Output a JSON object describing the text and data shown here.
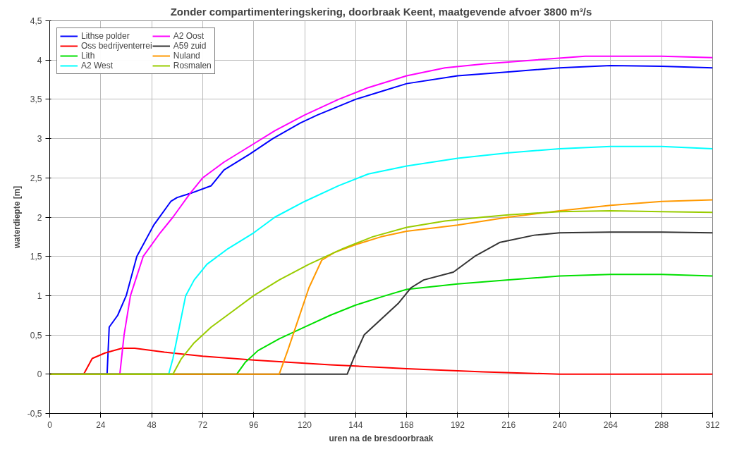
{
  "chart_data": {
    "type": "line",
    "title": "Zonder compartimenteringskering, doorbraak Keent, maatgevende afvoer 3800 m³/s",
    "xlabel": "uren na de bresdoorbraak",
    "ylabel": "waterdiepte [m]",
    "xlim": [
      0,
      312
    ],
    "xticks": [
      0,
      24,
      48,
      72,
      96,
      120,
      144,
      168,
      192,
      216,
      240,
      264,
      288,
      312
    ],
    "ylim": [
      -0.5,
      4.5
    ],
    "yticks": [
      {
        "value": -0.5,
        "label": "-0,5"
      },
      0,
      {
        "value": 0.5,
        "label": "0,5"
      },
      1,
      {
        "value": 1.5,
        "label": "1,5"
      },
      2,
      {
        "value": 2.5,
        "label": "2,5"
      },
      3,
      {
        "value": 3.5,
        "label": "3,5"
      },
      4,
      {
        "value": 4.5,
        "label": "4,5"
      }
    ],
    "grid": true,
    "legend": "top left",
    "line_style": "solid",
    "marker": "none",
    "series": [
      {
        "name": "Lithse polder",
        "color": "#0000ff",
        "x": [
          0,
          27,
          28,
          32,
          36,
          41,
          49,
          57,
          60,
          66,
          76,
          82,
          94,
          105,
          118,
          126,
          144,
          156,
          168,
          192,
          216,
          240,
          264,
          288,
          312
        ],
        "values": [
          0,
          0,
          0.6,
          0.75,
          1.0,
          1.5,
          1.9,
          2.2,
          2.25,
          2.3,
          2.4,
          2.6,
          2.8,
          3.0,
          3.2,
          3.3,
          3.5,
          3.6,
          3.7,
          3.8,
          3.85,
          3.9,
          3.93,
          3.92,
          3.9
        ]
      },
      {
        "name": "Oss bedrijventerrei",
        "color": "#ff0000",
        "x": [
          0,
          16,
          20,
          26,
          34,
          40,
          54,
          72,
          96,
          132,
          168,
          204,
          228,
          240,
          312
        ],
        "values": [
          0,
          0,
          0.2,
          0.27,
          0.33,
          0.33,
          0.28,
          0.23,
          0.18,
          0.12,
          0.07,
          0.03,
          0.01,
          0,
          0
        ]
      },
      {
        "name": "Lith",
        "color": "#00e000",
        "x": [
          0,
          88,
          92,
          98,
          108,
          120,
          132,
          144,
          158,
          168,
          192,
          216,
          240,
          264,
          288,
          312
        ],
        "values": [
          0,
          0,
          0.15,
          0.3,
          0.45,
          0.6,
          0.75,
          0.88,
          1.0,
          1.08,
          1.15,
          1.2,
          1.25,
          1.27,
          1.27,
          1.25
        ]
      },
      {
        "name": "A2 West",
        "color": "#00ffff",
        "x": [
          0,
          56,
          58,
          61,
          64,
          68,
          74,
          84,
          96,
          106,
          120,
          136,
          150,
          168,
          192,
          216,
          240,
          264,
          288,
          312
        ],
        "values": [
          0,
          0,
          0.2,
          0.6,
          1.0,
          1.2,
          1.4,
          1.6,
          1.8,
          2.0,
          2.2,
          2.4,
          2.55,
          2.65,
          2.75,
          2.82,
          2.87,
          2.9,
          2.9,
          2.87
        ]
      },
      {
        "name": "A2 Oost",
        "color": "#ff00ff",
        "x": [
          0,
          33,
          35,
          38,
          44,
          52,
          58,
          66,
          72,
          82,
          94,
          106,
          120,
          136,
          150,
          168,
          186,
          204,
          228,
          252,
          288,
          312
        ],
        "values": [
          0,
          0,
          0.5,
          1.0,
          1.5,
          1.8,
          2.0,
          2.3,
          2.5,
          2.7,
          2.9,
          3.1,
          3.3,
          3.5,
          3.65,
          3.8,
          3.9,
          3.95,
          4.0,
          4.05,
          4.05,
          4.03
        ]
      },
      {
        "name": "A59 zuid",
        "color": "#333333",
        "x": [
          0,
          140,
          143,
          148,
          156,
          164,
          170,
          176,
          190,
          200,
          212,
          228,
          240,
          264,
          288,
          312
        ],
        "values": [
          0,
          0,
          0.2,
          0.5,
          0.7,
          0.9,
          1.1,
          1.2,
          1.3,
          1.5,
          1.68,
          1.77,
          1.8,
          1.81,
          1.81,
          1.8
        ]
      },
      {
        "name": "Nuland",
        "color": "#ff9900",
        "x": [
          0,
          108,
          112,
          117,
          122,
          128,
          134,
          144,
          156,
          168,
          192,
          216,
          240,
          264,
          288,
          312
        ],
        "values": [
          0,
          0,
          0.3,
          0.7,
          1.1,
          1.45,
          1.55,
          1.65,
          1.75,
          1.82,
          1.9,
          2.0,
          2.08,
          2.15,
          2.2,
          2.22
        ]
      },
      {
        "name": "Rosmalen",
        "color": "#99cc00",
        "x": [
          0,
          58,
          62,
          68,
          76,
          86,
          96,
          108,
          122,
          138,
          152,
          168,
          186,
          204,
          216,
          240,
          264,
          288,
          312
        ],
        "values": [
          0,
          0,
          0.2,
          0.4,
          0.6,
          0.8,
          1.0,
          1.2,
          1.4,
          1.6,
          1.75,
          1.87,
          1.95,
          2.0,
          2.03,
          2.07,
          2.08,
          2.07,
          2.06
        ]
      }
    ]
  }
}
